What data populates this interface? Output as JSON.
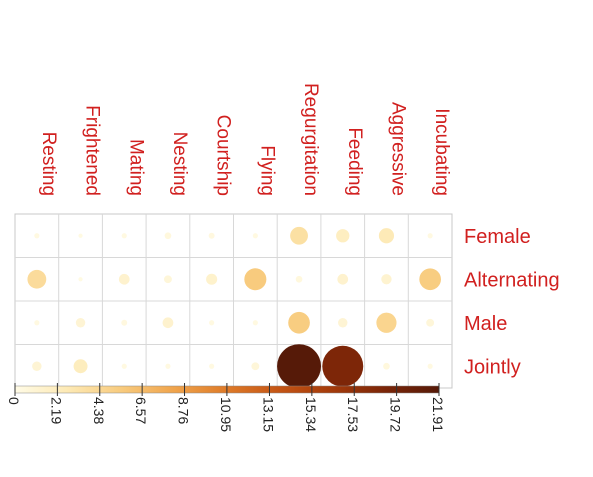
{
  "chart_data": {
    "type": "heatmap",
    "columns": [
      "Resting",
      "Frightened",
      "Mating",
      "Nesting",
      "Courtship",
      "Flying",
      "Regurgitation",
      "Feeding",
      "Aggressive",
      "Incubating"
    ],
    "rows": [
      "Female",
      "Alternating",
      "Male",
      "Jointly"
    ],
    "values": [
      [
        0.3,
        0.2,
        0.3,
        0.5,
        0.4,
        0.3,
        3.6,
        2.0,
        2.6,
        0.3
      ],
      [
        4.0,
        0.2,
        1.3,
        0.7,
        1.4,
        5.5,
        0.5,
        1.3,
        1.2,
        5.3
      ],
      [
        0.3,
        1.0,
        0.4,
        1.3,
        0.3,
        0.3,
        5.3,
        1.0,
        4.6,
        0.7
      ],
      [
        1.0,
        2.2,
        0.3,
        0.3,
        0.3,
        0.7,
        21.9,
        19.0,
        0.5,
        0.3
      ]
    ],
    "colorbar": {
      "ticks": [
        0,
        2.19,
        4.38,
        6.57,
        8.76,
        10.95,
        13.15,
        15.34,
        17.53,
        19.72,
        21.91
      ],
      "tick_labels": [
        "0",
        "2.19",
        "4.38",
        "6.57",
        "8.76",
        "10.95",
        "13.15",
        "15.34",
        "17.53",
        "19.72",
        "21.91"
      ],
      "range": [
        0,
        21.91
      ],
      "colors": [
        "#fffbe6",
        "#fde9b4",
        "#f8cb7e",
        "#f0a44c",
        "#de7a28",
        "#c45414",
        "#a33a0a",
        "#7a2508",
        "#561a08"
      ]
    },
    "legend": "bottom",
    "grid": true
  }
}
